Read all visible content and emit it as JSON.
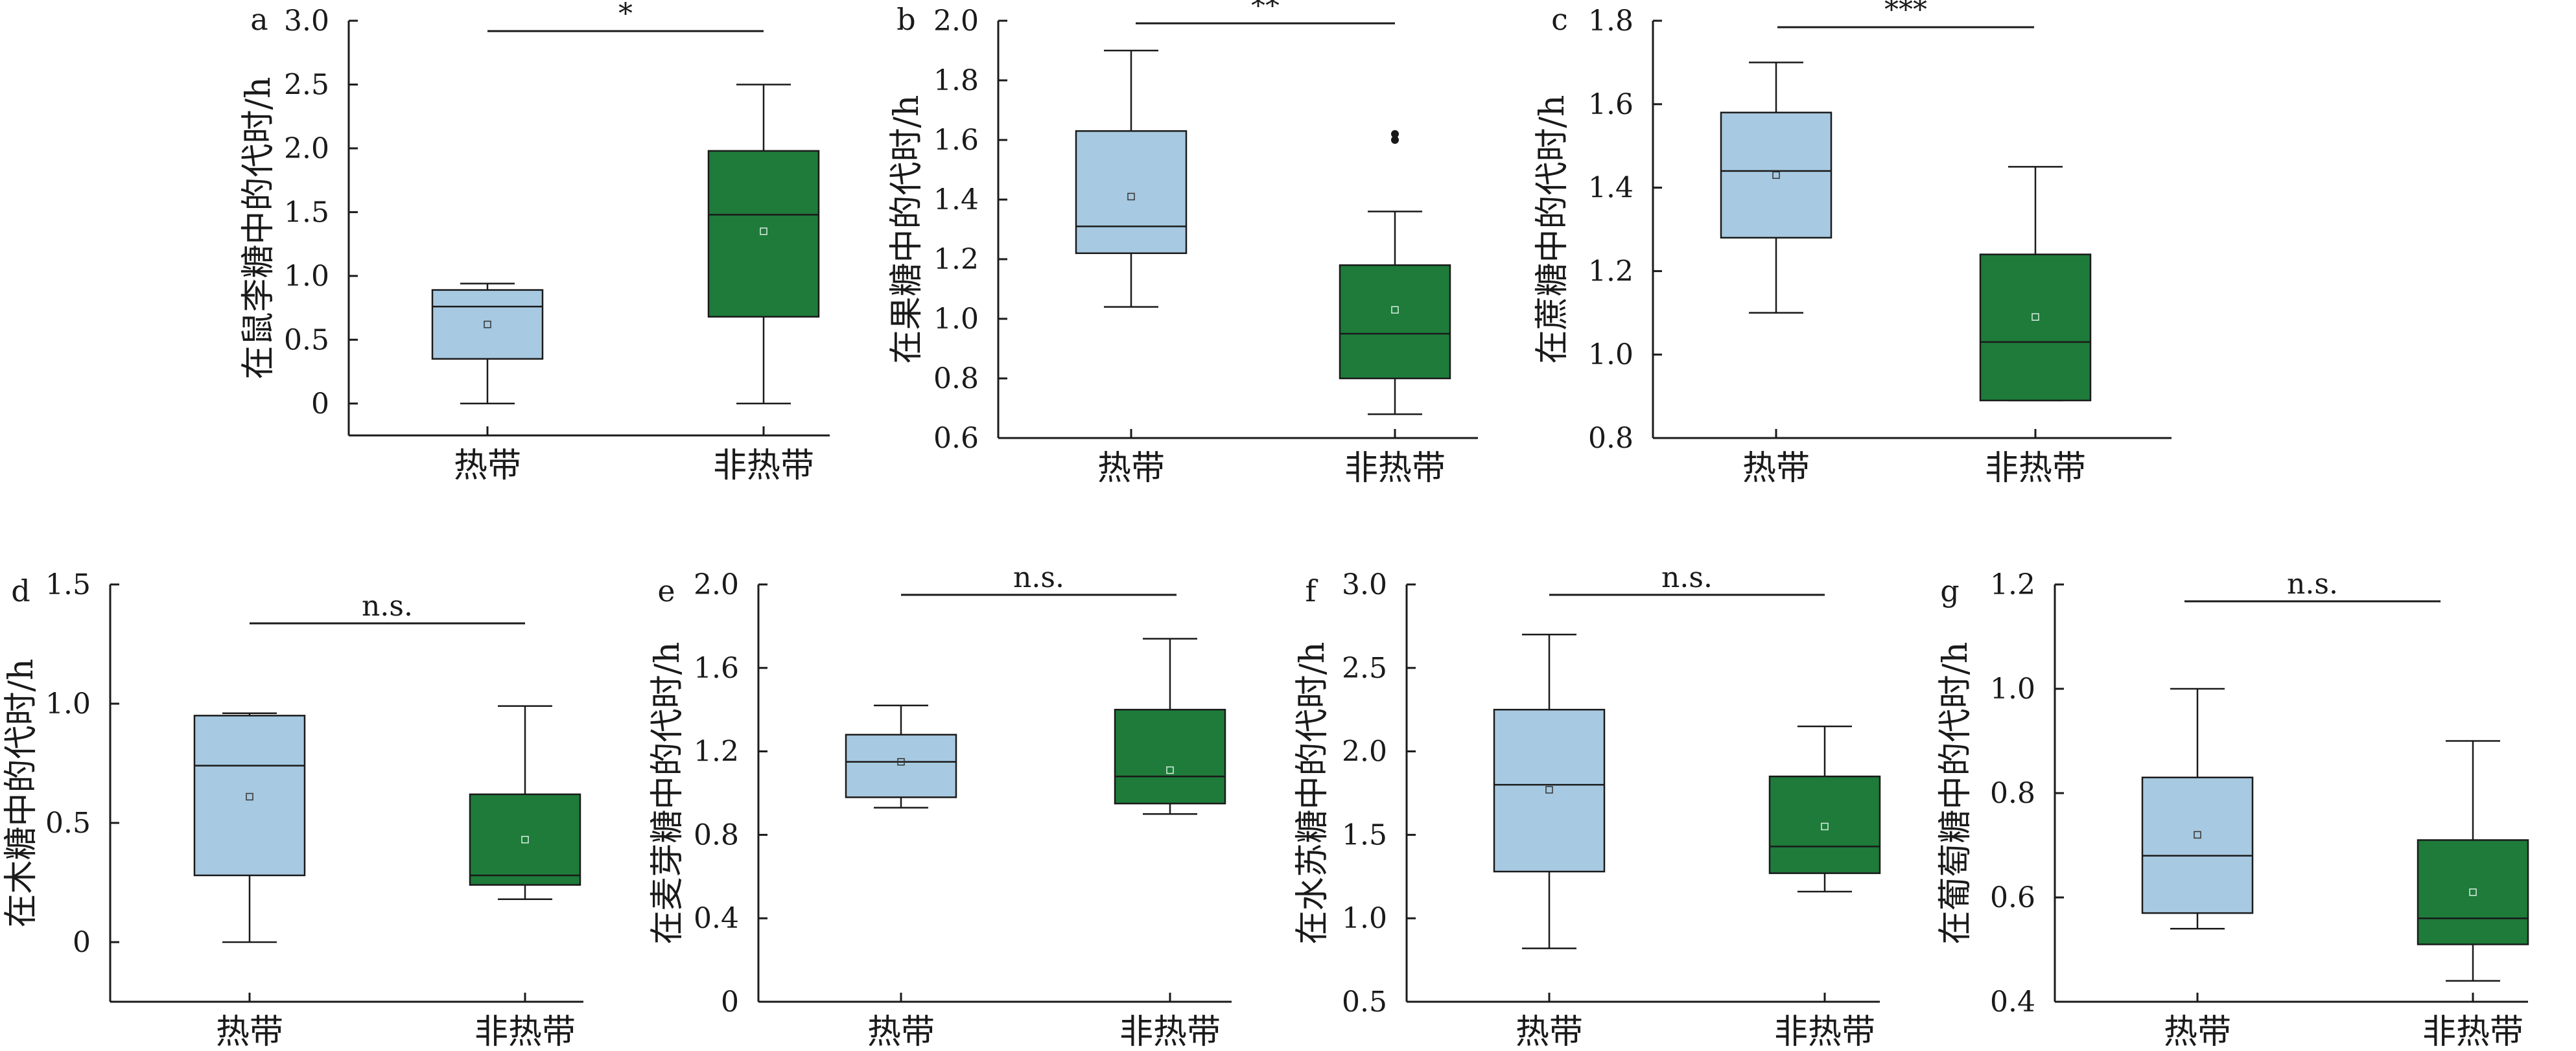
{
  "chart_data": [
    {
      "type": "box",
      "panel": "a",
      "ylabel": "在鼠李糖中的代时/h",
      "categories": [
        "热带",
        "非热带"
      ],
      "ylim": [
        -0.25,
        3.0
      ],
      "yticks": [
        0,
        0.5,
        1.0,
        1.5,
        2.0,
        2.5,
        3.0
      ],
      "ytick_labels": [
        "0",
        "0.5",
        "1.0",
        "1.5",
        "2.0",
        "2.5",
        "3.0"
      ],
      "boxes": [
        {
          "min": 0.0,
          "q1": 0.35,
          "median": 0.76,
          "q3": 0.89,
          "max": 0.94,
          "mean": 0.62,
          "outliers": []
        },
        {
          "min": 0.0,
          "q1": 0.68,
          "median": 1.48,
          "q3": 1.98,
          "max": 2.5,
          "mean": 1.35,
          "outliers": []
        }
      ],
      "significance": "*"
    },
    {
      "type": "box",
      "panel": "b",
      "ylabel": "在果糖中的代时/h",
      "categories": [
        "热带",
        "非热带"
      ],
      "ylim": [
        0.6,
        2.0
      ],
      "yticks": [
        0.6,
        0.8,
        1.0,
        1.2,
        1.4,
        1.6,
        1.8,
        2.0
      ],
      "ytick_labels": [
        "0.6",
        "0.8",
        "1.0",
        "1.2",
        "1.4",
        "1.6",
        "1.8",
        "2.0"
      ],
      "boxes": [
        {
          "min": 1.04,
          "q1": 1.22,
          "median": 1.31,
          "q3": 1.63,
          "max": 1.9,
          "mean": 1.41,
          "outliers": []
        },
        {
          "min": 0.68,
          "q1": 0.8,
          "median": 0.95,
          "q3": 1.18,
          "max": 1.36,
          "mean": 1.03,
          "outliers": [
            1.6,
            1.62
          ]
        }
      ],
      "significance": "**"
    },
    {
      "type": "box",
      "panel": "c",
      "ylabel": "在蔗糖中的代时/h",
      "categories": [
        "热带",
        "非热带"
      ],
      "ylim": [
        0.8,
        1.8
      ],
      "yticks": [
        0.8,
        1.0,
        1.2,
        1.4,
        1.6,
        1.8
      ],
      "ytick_labels": [
        "0.8",
        "1.0",
        "1.2",
        "1.4",
        "1.6",
        "1.8"
      ],
      "boxes": [
        {
          "min": 1.1,
          "q1": 1.28,
          "median": 1.44,
          "q3": 1.58,
          "max": 1.7,
          "mean": 1.43,
          "outliers": []
        },
        {
          "min": 0.89,
          "q1": 0.89,
          "median": 1.03,
          "q3": 1.24,
          "max": 1.45,
          "mean": 1.09,
          "outliers": []
        }
      ],
      "significance": "***"
    },
    {
      "type": "box",
      "panel": "d",
      "ylabel": "在木糖中的代时/h",
      "categories": [
        "热带",
        "非热带"
      ],
      "ylim": [
        -0.25,
        1.5
      ],
      "yticks": [
        0,
        0.5,
        1.0,
        1.5
      ],
      "ytick_labels": [
        "0",
        "0.5",
        "1.0",
        "1.5"
      ],
      "boxes": [
        {
          "min": 0.0,
          "q1": 0.28,
          "median": 0.74,
          "q3": 0.95,
          "max": 0.96,
          "mean": 0.61,
          "outliers": []
        },
        {
          "min": 0.18,
          "q1": 0.24,
          "median": 0.28,
          "q3": 0.62,
          "max": 0.99,
          "mean": 0.43,
          "outliers": []
        }
      ],
      "significance": "n.s."
    },
    {
      "type": "box",
      "panel": "e",
      "ylabel": "在麦芽糖中的代时/h",
      "categories": [
        "热带",
        "非热带"
      ],
      "ylim": [
        0,
        2.0
      ],
      "yticks": [
        0,
        0.4,
        0.8,
        1.2,
        1.6,
        2.0
      ],
      "ytick_labels": [
        "0",
        "0.4",
        "0.8",
        "1.2",
        "1.6",
        "2.0"
      ],
      "boxes": [
        {
          "min": 0.93,
          "q1": 0.98,
          "median": 1.15,
          "q3": 1.28,
          "max": 1.42,
          "mean": 1.15,
          "outliers": []
        },
        {
          "min": 0.9,
          "q1": 0.95,
          "median": 1.08,
          "q3": 1.4,
          "max": 1.74,
          "mean": 1.11,
          "outliers": []
        }
      ],
      "significance": "n.s."
    },
    {
      "type": "box",
      "panel": "f",
      "ylabel": "在水苏糖中的代时/h",
      "categories": [
        "热带",
        "非热带"
      ],
      "ylim": [
        0.5,
        3.0
      ],
      "yticks": [
        0.5,
        1.0,
        1.5,
        2.0,
        2.5,
        3.0
      ],
      "ytick_labels": [
        "0.5",
        "1.0",
        "1.5",
        "2.0",
        "2.5",
        "3.0"
      ],
      "boxes": [
        {
          "min": 0.82,
          "q1": 1.28,
          "median": 1.8,
          "q3": 2.25,
          "max": 2.7,
          "mean": 1.77,
          "outliers": []
        },
        {
          "min": 1.16,
          "q1": 1.27,
          "median": 1.43,
          "q3": 1.85,
          "max": 2.15,
          "mean": 1.55,
          "outliers": []
        }
      ],
      "significance": "n.s."
    },
    {
      "type": "box",
      "panel": "g",
      "ylabel": "在葡萄糖中的代时/h",
      "categories": [
        "热带",
        "非热带"
      ],
      "ylim": [
        0.4,
        1.2
      ],
      "yticks": [
        0.4,
        0.6,
        0.8,
        1.0,
        1.2
      ],
      "ytick_labels": [
        "0.4",
        "0.6",
        "0.8",
        "1.0",
        "1.2"
      ],
      "boxes": [
        {
          "min": 0.54,
          "q1": 0.57,
          "median": 0.68,
          "q3": 0.83,
          "max": 1.0,
          "mean": 0.72,
          "outliers": []
        },
        {
          "min": 0.44,
          "q1": 0.51,
          "median": 0.56,
          "q3": 0.71,
          "max": 0.9,
          "mean": 0.61,
          "outliers": []
        }
      ],
      "significance": "n.s."
    }
  ],
  "colors": {
    "tropical_fill": "#a7c9e1",
    "nontropical_fill": "#1e7b3a",
    "axis": "#1a1a1a"
  }
}
